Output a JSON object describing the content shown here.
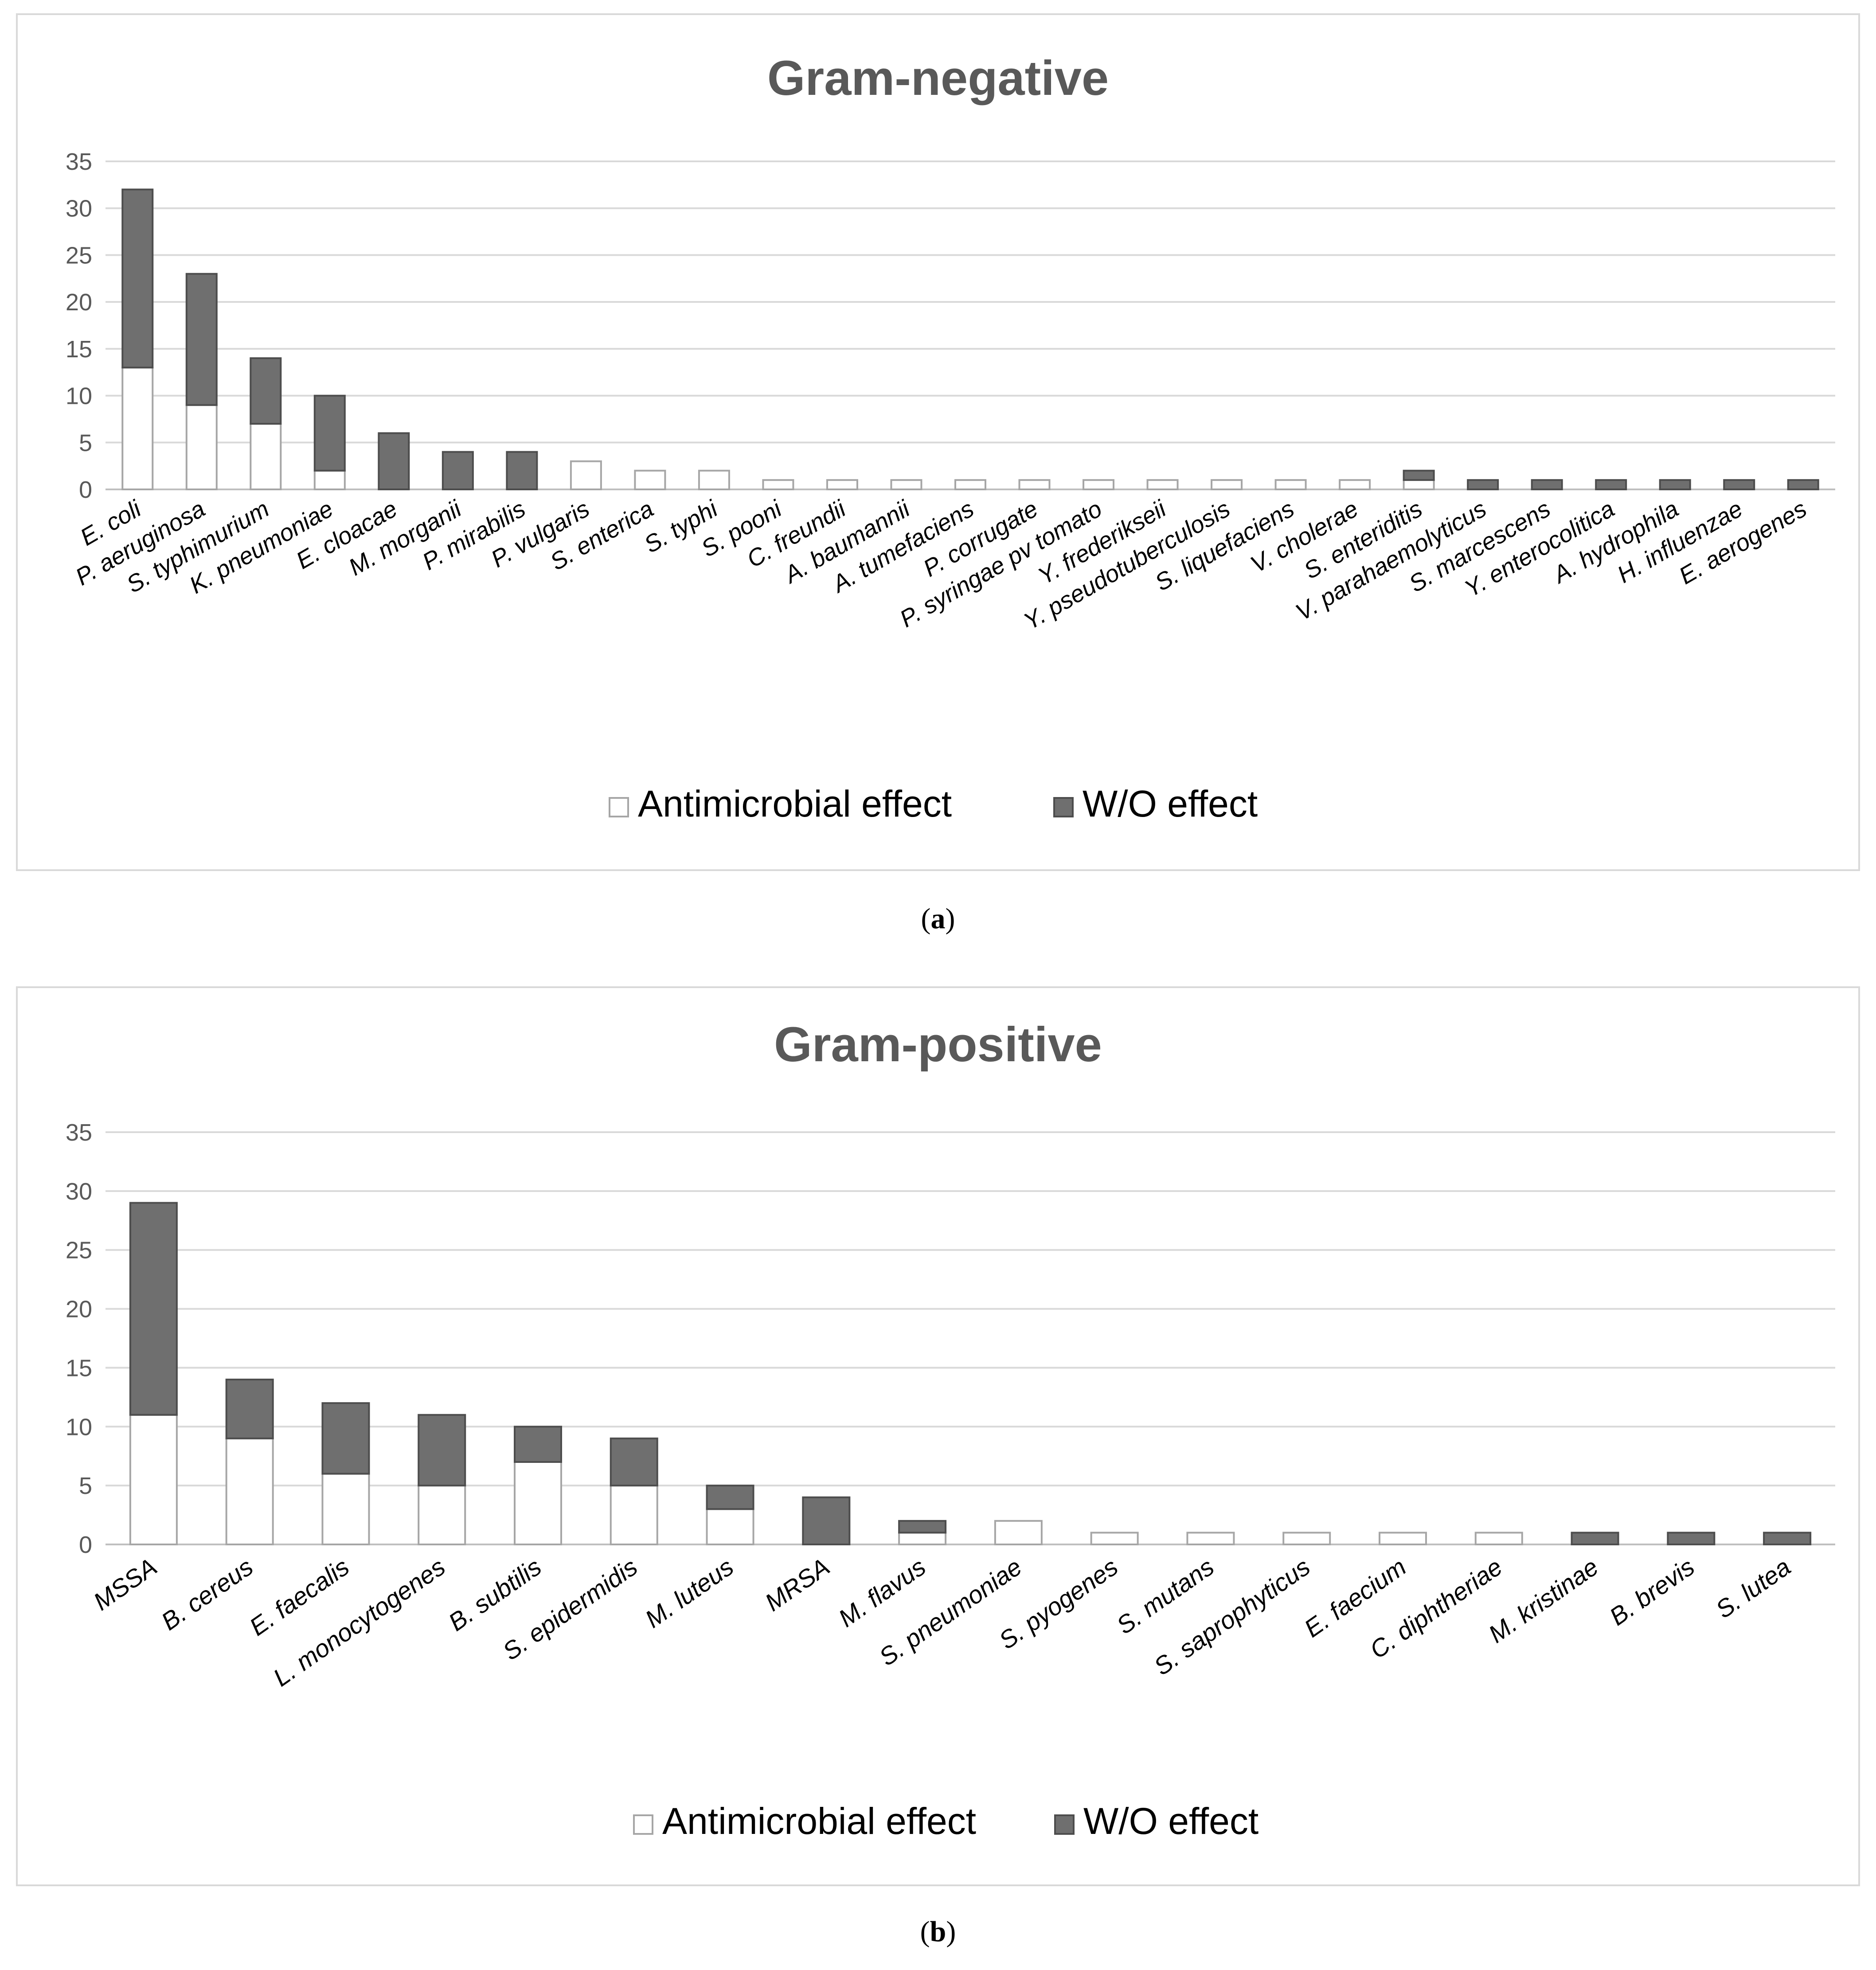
{
  "colors": {
    "effect_fill": "#ffffff",
    "effect_stroke": "#a6a6a6",
    "without_fill": "#6f6f6f",
    "without_stroke": "#4d4d4d",
    "grid": "#d9d9d9"
  },
  "captions": {
    "a": "a",
    "b": "b"
  },
  "chart_data": [
    {
      "type": "bar",
      "stacked": true,
      "title": "Gram-negative",
      "xlabel": "",
      "ylabel": "",
      "ylim": [
        0,
        35
      ],
      "yticks": [
        "0",
        "5",
        "10",
        "15",
        "20",
        "25",
        "30",
        "35"
      ],
      "legend_position": "bottom-center",
      "categories": [
        "E. coli",
        "P. aeruginosa",
        "S. typhimurium",
        "K. pneumoniae",
        "E. cloacae",
        "M. morganii",
        "P. mirabilis",
        "P. vulgaris",
        "S. enterica",
        "S. typhi",
        "S. pooni",
        "C. freundii",
        "A. baumannii",
        "A. tumefaciens",
        "P. corrugate",
        "P. syringae pv tomato",
        "Y. frederikseii",
        "Y. pseudotuberculosis",
        "S. liquefaciens",
        "V. cholerae",
        "S. enteriditis",
        "V. parahaemolyticus",
        "S. marcescens",
        "Y. enterocolitica",
        "A. hydrophila",
        "H. influenzae",
        "E. aerogenes"
      ],
      "series": [
        {
          "name": "Antimicrobial effect",
          "values": [
            13,
            9,
            7,
            2,
            0,
            0,
            0,
            3,
            2,
            2,
            1,
            1,
            1,
            1,
            1,
            1,
            1,
            1,
            1,
            1,
            1,
            0,
            0,
            0,
            0,
            0,
            0
          ]
        },
        {
          "name": "W/O effect",
          "values": [
            19,
            14,
            7,
            8,
            6,
            4,
            4,
            0,
            0,
            0,
            0,
            0,
            0,
            0,
            0,
            0,
            0,
            0,
            0,
            0,
            1,
            1,
            1,
            1,
            1,
            1,
            1
          ]
        }
      ]
    },
    {
      "type": "bar",
      "stacked": true,
      "title": "Gram-positive",
      "xlabel": "",
      "ylabel": "",
      "ylim": [
        0,
        35
      ],
      "yticks": [
        "0",
        "5",
        "10",
        "15",
        "20",
        "25",
        "30",
        "35"
      ],
      "legend_position": "bottom-center",
      "categories": [
        "MSSA",
        "B. cereus",
        "E. faecalis",
        "L. monocytogenes",
        "B. subtilis",
        "S. epidermidis",
        "M. luteus",
        "MRSA",
        "M. flavus",
        "S. pneumoniae",
        "S. pyogenes",
        "S. mutans",
        "S. saprophyticus",
        "E. faecium",
        "C. diphtheriae",
        "M. kristinae",
        "B. brevis",
        "S. lutea"
      ],
      "series": [
        {
          "name": "Antimicrobial effect",
          "values": [
            11,
            9,
            6,
            5,
            7,
            5,
            3,
            0,
            1,
            2,
            1,
            1,
            1,
            1,
            1,
            0,
            0,
            0
          ]
        },
        {
          "name": "W/O effect",
          "values": [
            18,
            5,
            6,
            6,
            3,
            4,
            2,
            4,
            1,
            0,
            0,
            0,
            0,
            0,
            0,
            1,
            1,
            1
          ]
        }
      ]
    }
  ]
}
